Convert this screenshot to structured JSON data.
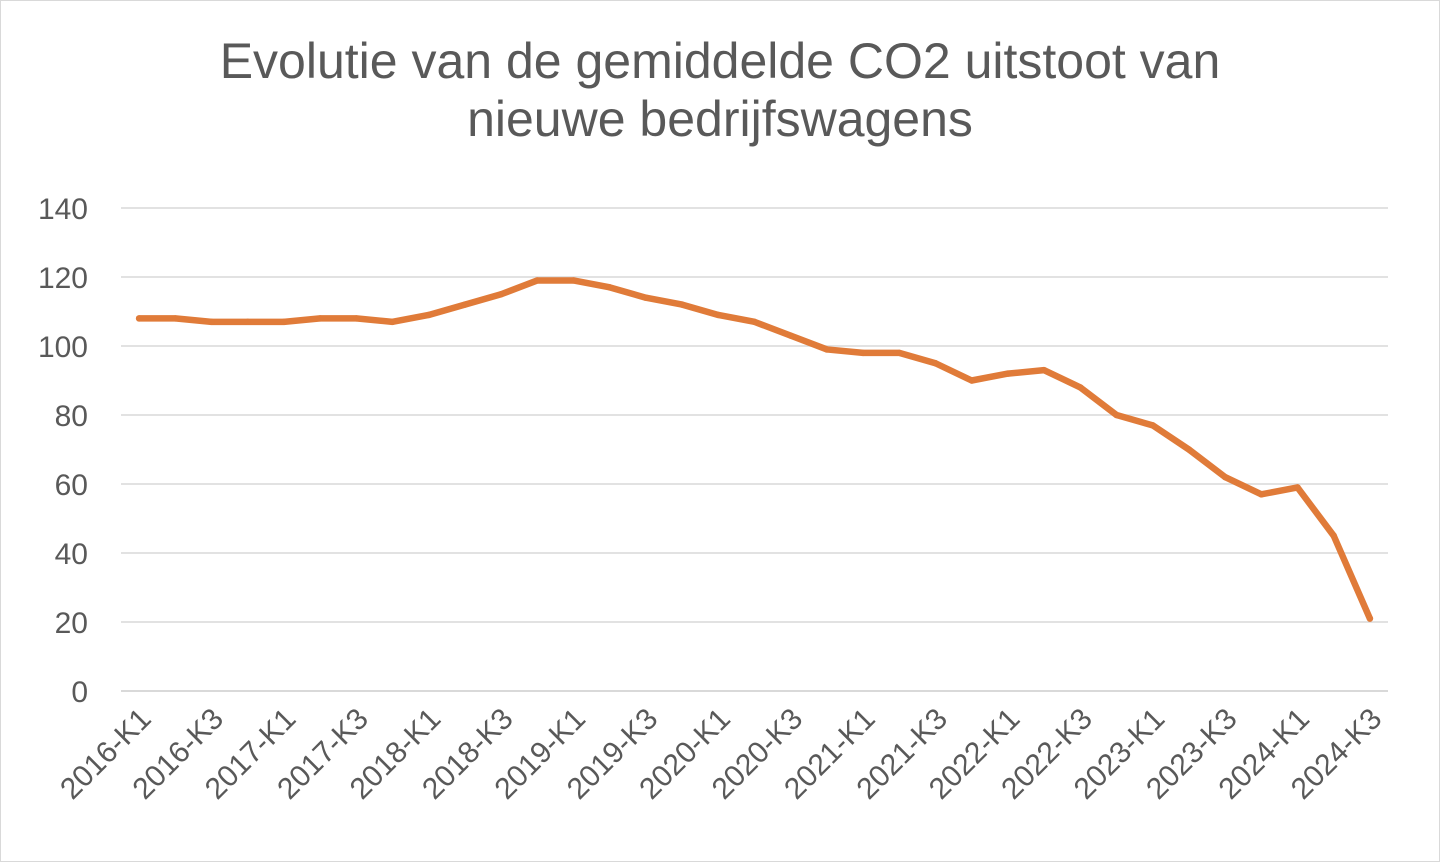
{
  "chart_data": {
    "type": "line",
    "title": "Evolutie van de gemiddelde CO2 uitstoot van nieuwe bedrijfswagens",
    "title_lines": [
      "Evolutie van de gemiddelde CO2 uitstoot van",
      "nieuwe bedrijfswagens"
    ],
    "xlabel": "",
    "ylabel": "",
    "ylim": [
      0,
      140
    ],
    "yticks": [
      0,
      20,
      40,
      60,
      80,
      100,
      120,
      140
    ],
    "grid": true,
    "legend": "none",
    "categories": [
      "2016-K1",
      "2016-K2",
      "2016-K3",
      "2016-K4",
      "2017-K1",
      "2017-K2",
      "2017-K3",
      "2017-K4",
      "2018-K1",
      "2018-K2",
      "2018-K3",
      "2018-K4",
      "2019-K1",
      "2019-K2",
      "2019-K3",
      "2019-K4",
      "2020-K1",
      "2020-K2",
      "2020-K3",
      "2020-K4",
      "2021-K1",
      "2021-K2",
      "2021-K3",
      "2021-K4",
      "2022-K1",
      "2022-K2",
      "2022-K3",
      "2022-K4",
      "2023-K1",
      "2023-K2",
      "2023-K3",
      "2023-K4",
      "2024-K1",
      "2024-K2",
      "2024-K3"
    ],
    "tick_labels": [
      "2016-K1",
      "2016-K3",
      "2017-K1",
      "2017-K3",
      "2018-K1",
      "2018-K3",
      "2019-K1",
      "2019-K3",
      "2020-K1",
      "2020-K3",
      "2021-K1",
      "2021-K3",
      "2022-K1",
      "2022-K3",
      "2023-K1",
      "2023-K3",
      "2024-K1",
      "2024-K3"
    ],
    "series": [
      {
        "color": "#E07B39",
        "values": [
          108,
          108,
          107,
          107,
          107,
          108,
          108,
          107,
          109,
          112,
          115,
          119,
          119,
          117,
          114,
          112,
          109,
          107,
          103,
          99,
          98,
          98,
          95,
          90,
          92,
          93,
          88,
          80,
          77,
          70,
          62,
          57,
          59,
          45,
          21
        ]
      }
    ]
  }
}
